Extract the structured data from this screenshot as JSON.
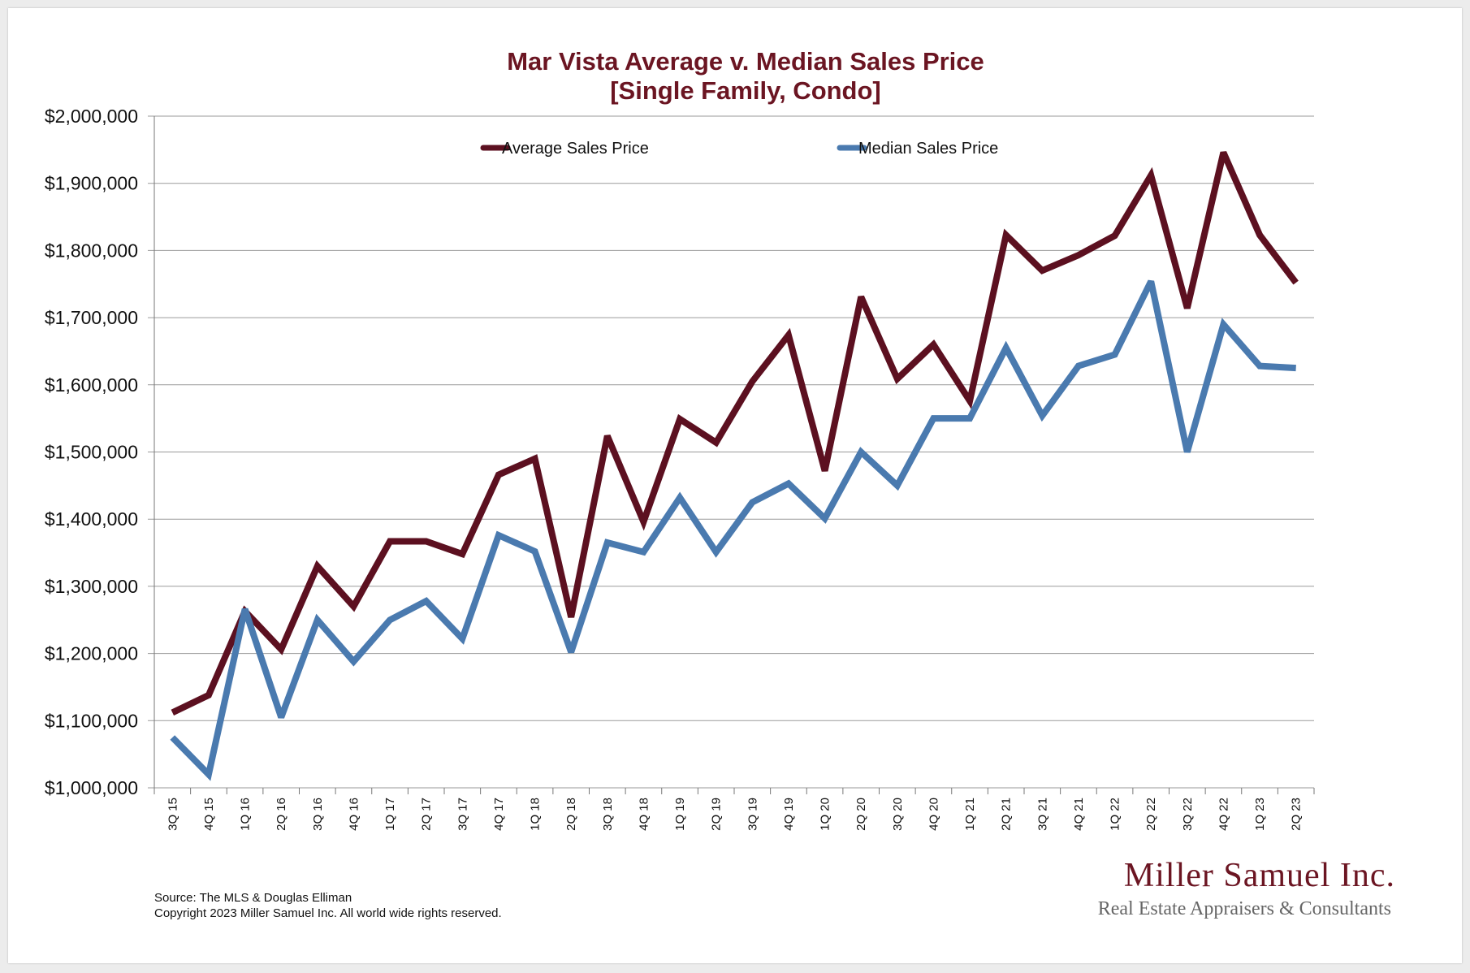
{
  "chart_data": {
    "type": "line",
    "title": "Mar Vista Average v. Median Sales Price",
    "subtitle": "[Single Family, Condo]",
    "categories": [
      "3Q 15",
      "4Q 15",
      "1Q 16",
      "2Q 16",
      "3Q 16",
      "4Q 16",
      "1Q 17",
      "2Q 17",
      "3Q 17",
      "4Q 17",
      "1Q 18",
      "2Q 18",
      "3Q 18",
      "4Q 18",
      "1Q 19",
      "2Q 19",
      "3Q 19",
      "4Q 19",
      "1Q 20",
      "2Q 20",
      "3Q 20",
      "4Q 20",
      "1Q 21",
      "2Q 21",
      "3Q 21",
      "4Q 21",
      "1Q 22",
      "2Q 22",
      "3Q 22",
      "4Q 22",
      "1Q 23",
      "2Q 23"
    ],
    "series": [
      {
        "name": "Average Sales Price",
        "color": "#5c1020",
        "values": [
          1112000,
          1138000,
          1263000,
          1206000,
          1330000,
          1270000,
          1367000,
          1367000,
          1348000,
          1466000,
          1490000,
          1254000,
          1524000,
          1396000,
          1549000,
          1514000,
          1605000,
          1674000,
          1472000,
          1731000,
          1609000,
          1660000,
          1576000,
          1823000,
          1770000,
          1793000,
          1822000,
          1912000,
          1714000,
          1946000,
          1823000,
          1752000
        ]
      },
      {
        "name": "Median Sales Price",
        "color": "#4a7aaf",
        "values": [
          1075000,
          1020000,
          1266000,
          1105000,
          1250000,
          1188000,
          1250000,
          1278000,
          1222000,
          1376000,
          1352000,
          1202000,
          1365000,
          1351000,
          1432000,
          1351000,
          1425000,
          1453000,
          1401000,
          1500000,
          1450000,
          1550000,
          1550000,
          1655000,
          1554000,
          1628000,
          1645000,
          1754000,
          1500000,
          1690000,
          1628000,
          1625000
        ]
      }
    ],
    "ylim": [
      1000000,
      2000000
    ],
    "yticks": [
      "$1,000,000",
      "$1,100,000",
      "$1,200,000",
      "$1,300,000",
      "$1,400,000",
      "$1,500,000",
      "$1,600,000",
      "$1,700,000",
      "$1,800,000",
      "$1,900,000",
      "$2,000,000"
    ],
    "grid": true,
    "legend": "top-center"
  },
  "footnote": {
    "source": "Source: The MLS & Douglas Elliman",
    "copyright": "Copyright 2023 Miller Samuel Inc.  All world wide rights reserved."
  },
  "brand": {
    "name": "Miller Samuel Inc.",
    "tagline": "Real Estate Appraisers & Consultants"
  }
}
